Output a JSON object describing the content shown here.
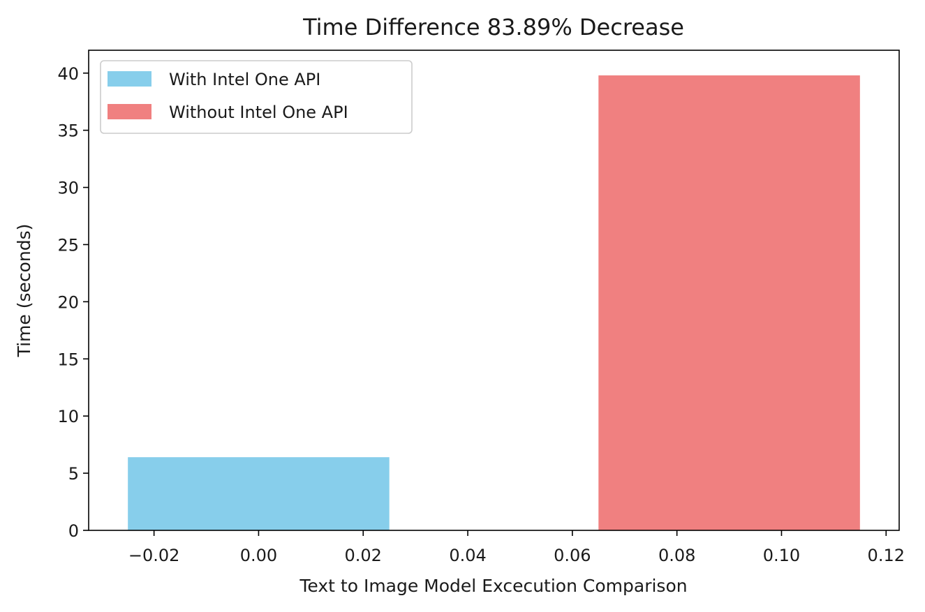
{
  "chart_data": {
    "type": "bar",
    "title": "Time Difference 83.89% Decrease",
    "xlabel": "Text to Image Model Excecution Comparison",
    "ylabel": "Time (seconds)",
    "xlim": [
      -0.0325,
      0.1225
    ],
    "ylim": [
      0,
      42
    ],
    "x_ticks": [
      -0.02,
      0.0,
      0.02,
      0.04,
      0.06,
      0.08,
      0.1,
      0.12
    ],
    "x_tick_labels": [
      "−0.02",
      "0.00",
      "0.02",
      "0.04",
      "0.06",
      "0.08",
      "0.10",
      "0.12"
    ],
    "y_ticks": [
      0,
      5,
      10,
      15,
      20,
      25,
      30,
      35,
      40
    ],
    "y_tick_labels": [
      "0",
      "5",
      "10",
      "15",
      "20",
      "25",
      "30",
      "35",
      "40"
    ],
    "grid": false,
    "legend_position": "top-left",
    "series": [
      {
        "name": "With Intel One API",
        "x": 0.0,
        "width": 0.05,
        "value": 6.4,
        "color": "#87ceeb"
      },
      {
        "name": "Without Intel One API",
        "x": 0.09,
        "width": 0.05,
        "value": 39.8,
        "color": "#f08080"
      }
    ]
  }
}
